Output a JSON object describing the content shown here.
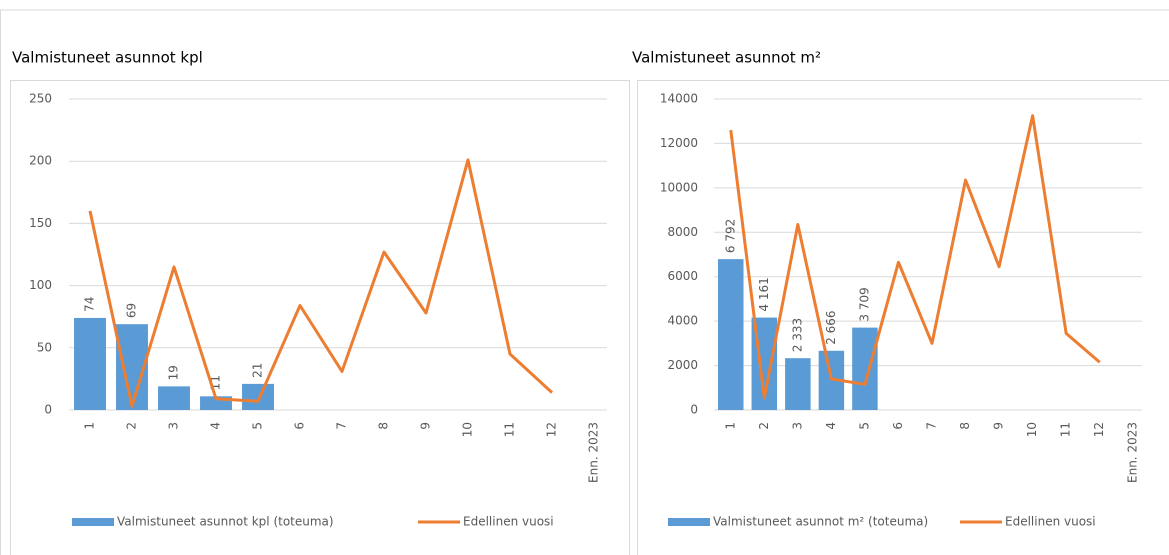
{
  "chart_data": [
    {
      "type": "combo",
      "title": "Valmistuneet asunnot kpl",
      "categories": [
        "1",
        "2",
        "3",
        "4",
        "5",
        "6",
        "7",
        "8",
        "9",
        "10",
        "11",
        "12",
        "Enn. 2023"
      ],
      "ylim": [
        0,
        250
      ],
      "yticks": [
        0,
        50,
        100,
        150,
        200,
        250
      ],
      "grid": true,
      "series": [
        {
          "name": "Valmistuneet asunnot kpl (toteuma)",
          "type": "bar",
          "color": "#5b9bd5",
          "values": [
            74,
            69,
            19,
            11,
            21,
            null,
            null,
            null,
            null,
            null,
            null,
            null,
            null
          ]
        },
        {
          "name": "Edellinen vuosi",
          "type": "line",
          "color": "#ed7d31",
          "values": [
            160,
            3,
            115,
            9,
            7,
            84,
            31,
            127,
            78,
            201,
            45,
            14,
            null
          ]
        }
      ]
    },
    {
      "type": "combo",
      "title": "Valmistuneet asunnot  m²",
      "categories": [
        "1",
        "2",
        "3",
        "4",
        "5",
        "6",
        "7",
        "8",
        "9",
        "10",
        "11",
        "12",
        "Enn. 2023"
      ],
      "ylim": [
        0,
        14000
      ],
      "yticks": [
        0,
        2000,
        4000,
        6000,
        8000,
        10000,
        12000,
        14000
      ],
      "grid": true,
      "series": [
        {
          "name": "Valmistuneet asunnot m² (toteuma)",
          "type": "bar",
          "color": "#5b9bd5",
          "values": [
            6792,
            4161,
            2333,
            2666,
            3709,
            null,
            null,
            null,
            null,
            null,
            null,
            null,
            null
          ],
          "value_labels": [
            "6 792",
            "4 161",
            "2 333",
            "2 666",
            "3 709",
            null,
            null,
            null,
            null,
            null,
            null,
            null,
            null
          ]
        },
        {
          "name": "Edellinen vuosi",
          "type": "line",
          "color": "#ed7d31",
          "values": [
            12600,
            550,
            8350,
            1400,
            1150,
            6650,
            3000,
            10350,
            6450,
            13250,
            3450,
            2150,
            null
          ]
        }
      ]
    }
  ]
}
